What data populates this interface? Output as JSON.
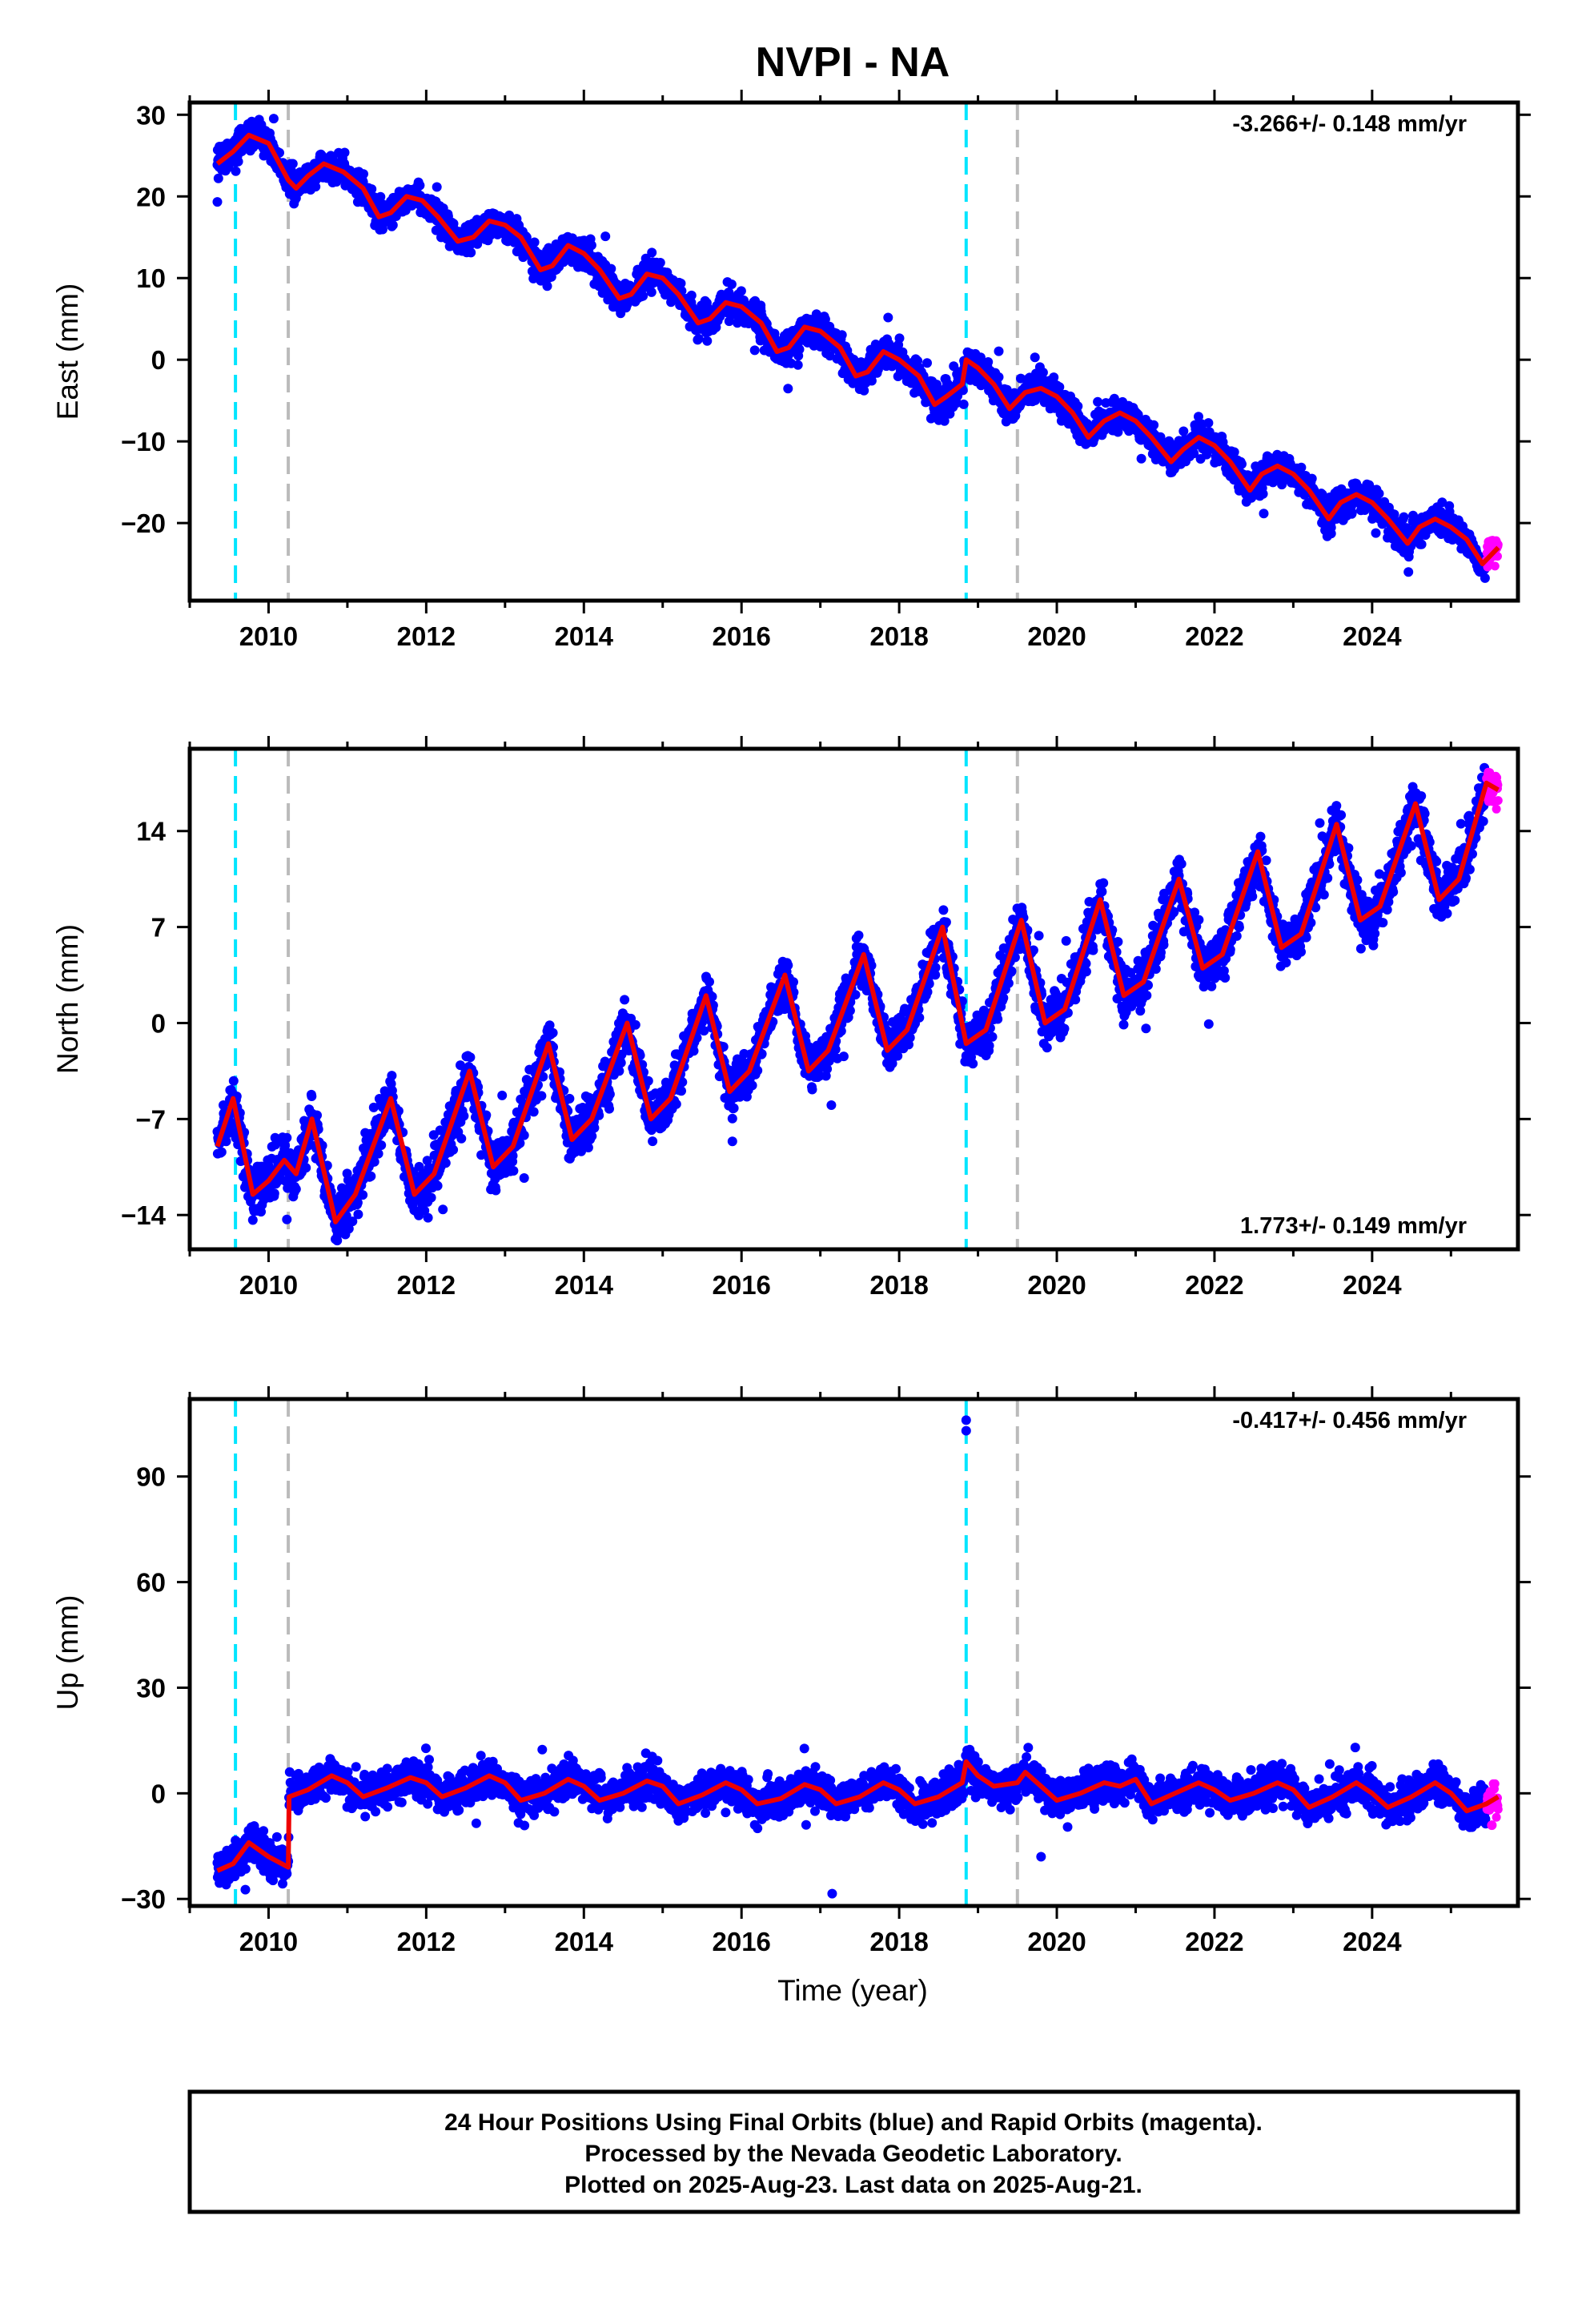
{
  "chart_data": {
    "type": "scatter",
    "title": "NVPI - NA",
    "xlabel": "Time (year)",
    "xlim": [
      2009.0,
      2025.85
    ],
    "x_ticks": [
      "2010",
      "2012",
      "2014",
      "2016",
      "2018",
      "2020",
      "2022",
      "2024"
    ],
    "x_tick_values": [
      2010,
      2012,
      2014,
      2016,
      2018,
      2020,
      2022,
      2024
    ],
    "event_lines": [
      {
        "x": 2009.58,
        "color": "#00e5ff",
        "style": "dashed"
      },
      {
        "x": 2010.25,
        "color": "#bbbbbb",
        "style": "dashed"
      },
      {
        "x": 2018.85,
        "color": "#00e5ff",
        "style": "dashed"
      },
      {
        "x": 2019.5,
        "color": "#bbbbbb",
        "style": "dashed"
      }
    ],
    "colors": {
      "final": "#0000ff",
      "rapid": "#ff00ff",
      "model": "#ee0000"
    },
    "panels": [
      {
        "name": "east",
        "ylabel": "East (mm)",
        "ylim": [
          -29.5,
          31.5
        ],
        "y_ticks": [
          "30",
          "20",
          "10",
          "0",
          "−10",
          "−20"
        ],
        "y_tick_values": [
          30,
          20,
          10,
          0,
          -10,
          -20
        ],
        "rate": "-3.266+/- 0.148 mm/yr",
        "rate_position": "top-right",
        "series_start": 2009.35,
        "series_end": 2025.6,
        "rapid_start": 2025.45,
        "model": [
          [
            2009.35,
            24
          ],
          [
            2009.55,
            25.5
          ],
          [
            2009.75,
            27.5
          ],
          [
            2010.0,
            26.5
          ],
          [
            2010.25,
            22
          ],
          [
            2010.35,
            21
          ],
          [
            2010.5,
            22.5
          ],
          [
            2010.7,
            24
          ],
          [
            2010.95,
            23
          ],
          [
            2011.2,
            21
          ],
          [
            2011.4,
            17.5
          ],
          [
            2011.55,
            18
          ],
          [
            2011.75,
            20
          ],
          [
            2011.95,
            19.5
          ],
          [
            2012.15,
            17.5
          ],
          [
            2012.4,
            14.5
          ],
          [
            2012.6,
            15
          ],
          [
            2012.8,
            17
          ],
          [
            2013.0,
            16.5
          ],
          [
            2013.2,
            15
          ],
          [
            2013.45,
            11
          ],
          [
            2013.6,
            11.5
          ],
          [
            2013.8,
            14
          ],
          [
            2014.0,
            13
          ],
          [
            2014.2,
            11
          ],
          [
            2014.45,
            7.5
          ],
          [
            2014.6,
            8
          ],
          [
            2014.8,
            10.5
          ],
          [
            2015.0,
            10
          ],
          [
            2015.2,
            8
          ],
          [
            2015.45,
            4.5
          ],
          [
            2015.6,
            5
          ],
          [
            2015.8,
            7
          ],
          [
            2016.0,
            6.5
          ],
          [
            2016.25,
            4.5
          ],
          [
            2016.45,
            1
          ],
          [
            2016.6,
            1.5
          ],
          [
            2016.8,
            4
          ],
          [
            2017.0,
            3.5
          ],
          [
            2017.25,
            1.5
          ],
          [
            2017.45,
            -2
          ],
          [
            2017.6,
            -1.5
          ],
          [
            2017.8,
            1
          ],
          [
            2018.0,
            0
          ],
          [
            2018.25,
            -2
          ],
          [
            2018.45,
            -5.5
          ],
          [
            2018.6,
            -4.5
          ],
          [
            2018.8,
            -3
          ],
          [
            2018.85,
            0
          ],
          [
            2019.0,
            -1
          ],
          [
            2019.2,
            -3
          ],
          [
            2019.4,
            -6
          ],
          [
            2019.6,
            -4
          ],
          [
            2019.8,
            -3.5
          ],
          [
            2020.0,
            -4.5
          ],
          [
            2020.2,
            -6.5
          ],
          [
            2020.4,
            -9.5
          ],
          [
            2020.6,
            -7.5
          ],
          [
            2020.8,
            -6.5
          ],
          [
            2021.0,
            -7.5
          ],
          [
            2021.2,
            -9.5
          ],
          [
            2021.45,
            -12.5
          ],
          [
            2021.6,
            -11
          ],
          [
            2021.8,
            -9.5
          ],
          [
            2022.0,
            -10.5
          ],
          [
            2022.2,
            -12.5
          ],
          [
            2022.45,
            -16
          ],
          [
            2022.6,
            -14
          ],
          [
            2022.8,
            -13
          ],
          [
            2023.0,
            -14
          ],
          [
            2023.2,
            -16
          ],
          [
            2023.45,
            -19.5
          ],
          [
            2023.6,
            -17.5
          ],
          [
            2023.8,
            -16.5
          ],
          [
            2024.0,
            -17.5
          ],
          [
            2024.2,
            -19.5
          ],
          [
            2024.45,
            -22.5
          ],
          [
            2024.6,
            -20.5
          ],
          [
            2024.8,
            -19.5
          ],
          [
            2025.0,
            -20.5
          ],
          [
            2025.2,
            -22
          ],
          [
            2025.4,
            -25
          ],
          [
            2025.6,
            -23
          ]
        ]
      },
      {
        "name": "north",
        "ylabel": "North (mm)",
        "ylim": [
          -16.5,
          20.0
        ],
        "y_ticks": [
          "14",
          "7",
          "0",
          "−7",
          "−14"
        ],
        "y_tick_values": [
          14,
          7,
          0,
          -7,
          -14
        ],
        "rate": "1.773+/- 0.149 mm/yr",
        "rate_position": "bottom-right",
        "series_start": 2009.35,
        "series_end": 2025.6,
        "rapid_start": 2025.45,
        "model": [
          [
            2009.35,
            -9
          ],
          [
            2009.55,
            -5.5
          ],
          [
            2009.8,
            -12.5
          ],
          [
            2010.0,
            -11.5
          ],
          [
            2010.2,
            -10
          ],
          [
            2010.35,
            -11
          ],
          [
            2010.55,
            -7
          ],
          [
            2010.85,
            -14.5
          ],
          [
            2011.1,
            -12.5
          ],
          [
            2011.55,
            -5.5
          ],
          [
            2011.85,
            -12.5
          ],
          [
            2012.1,
            -11
          ],
          [
            2012.55,
            -3.5
          ],
          [
            2012.85,
            -10.5
          ],
          [
            2013.1,
            -9
          ],
          [
            2013.55,
            -1.5
          ],
          [
            2013.85,
            -8.5
          ],
          [
            2014.1,
            -7
          ],
          [
            2014.55,
            0
          ],
          [
            2014.85,
            -7
          ],
          [
            2015.1,
            -5.5
          ],
          [
            2015.55,
            2
          ],
          [
            2015.85,
            -5
          ],
          [
            2016.1,
            -3.5
          ],
          [
            2016.55,
            3.5
          ],
          [
            2016.85,
            -3.5
          ],
          [
            2017.1,
            -2
          ],
          [
            2017.55,
            5
          ],
          [
            2017.85,
            -2
          ],
          [
            2018.1,
            -0.5
          ],
          [
            2018.55,
            7
          ],
          [
            2018.85,
            -1.5
          ],
          [
            2019.1,
            -0.5
          ],
          [
            2019.55,
            7.5
          ],
          [
            2019.85,
            0
          ],
          [
            2020.1,
            1
          ],
          [
            2020.55,
            9
          ],
          [
            2020.85,
            2
          ],
          [
            2021.1,
            3
          ],
          [
            2021.55,
            10.5
          ],
          [
            2021.85,
            4
          ],
          [
            2022.1,
            5
          ],
          [
            2022.55,
            12.5
          ],
          [
            2022.85,
            5.5
          ],
          [
            2023.1,
            6.5
          ],
          [
            2023.55,
            14.5
          ],
          [
            2023.85,
            7.5
          ],
          [
            2024.1,
            8.5
          ],
          [
            2024.55,
            16
          ],
          [
            2024.85,
            9
          ],
          [
            2025.1,
            10.5
          ],
          [
            2025.45,
            17.5
          ],
          [
            2025.6,
            17
          ]
        ]
      },
      {
        "name": "up",
        "ylabel": "Up (mm)",
        "ylim": [
          -32,
          112
        ],
        "y_ticks": [
          "90",
          "60",
          "30",
          "0",
          "−30"
        ],
        "y_tick_values": [
          90,
          60,
          30,
          0,
          -30
        ],
        "rate": "-0.417+/- 0.456 mm/yr",
        "rate_position": "top-right",
        "series_start": 2009.35,
        "series_end": 2025.6,
        "rapid_start": 2025.45,
        "model": [
          [
            2009.35,
            -22
          ],
          [
            2009.55,
            -20
          ],
          [
            2009.75,
            -14
          ],
          [
            2010.0,
            -18
          ],
          [
            2010.25,
            -21
          ],
          [
            2010.26,
            -1
          ],
          [
            2010.5,
            1
          ],
          [
            2010.8,
            5
          ],
          [
            2011.0,
            3
          ],
          [
            2011.2,
            -1
          ],
          [
            2011.5,
            1.5
          ],
          [
            2011.8,
            4.5
          ],
          [
            2012.0,
            3
          ],
          [
            2012.2,
            -1
          ],
          [
            2012.5,
            1.5
          ],
          [
            2012.8,
            5
          ],
          [
            2013.0,
            3
          ],
          [
            2013.2,
            -2
          ],
          [
            2013.5,
            0
          ],
          [
            2013.8,
            4
          ],
          [
            2014.0,
            2
          ],
          [
            2014.2,
            -2
          ],
          [
            2014.5,
            0
          ],
          [
            2014.8,
            3.5
          ],
          [
            2015.0,
            2
          ],
          [
            2015.2,
            -3
          ],
          [
            2015.5,
            -0.5
          ],
          [
            2015.8,
            3
          ],
          [
            2016.0,
            1
          ],
          [
            2016.2,
            -3
          ],
          [
            2016.5,
            -1.5
          ],
          [
            2016.8,
            2.5
          ],
          [
            2017.0,
            1
          ],
          [
            2017.2,
            -3
          ],
          [
            2017.5,
            -1
          ],
          [
            2017.8,
            3
          ],
          [
            2018.0,
            1
          ],
          [
            2018.2,
            -3
          ],
          [
            2018.5,
            -1
          ],
          [
            2018.8,
            3
          ],
          [
            2018.85,
            9
          ],
          [
            2019.0,
            5
          ],
          [
            2019.2,
            2
          ],
          [
            2019.5,
            3
          ],
          [
            2019.6,
            6
          ],
          [
            2019.8,
            2
          ],
          [
            2020.0,
            -2
          ],
          [
            2020.3,
            0
          ],
          [
            2020.6,
            3
          ],
          [
            2020.8,
            2
          ],
          [
            2021.0,
            4
          ],
          [
            2021.2,
            -3
          ],
          [
            2021.5,
            0
          ],
          [
            2021.8,
            3
          ],
          [
            2022.0,
            1
          ],
          [
            2022.2,
            -2
          ],
          [
            2022.5,
            0
          ],
          [
            2022.8,
            3
          ],
          [
            2023.0,
            1
          ],
          [
            2023.2,
            -4
          ],
          [
            2023.5,
            -1
          ],
          [
            2023.8,
            3
          ],
          [
            2024.0,
            0
          ],
          [
            2024.2,
            -4
          ],
          [
            2024.5,
            -1
          ],
          [
            2024.8,
            3
          ],
          [
            2025.0,
            0
          ],
          [
            2025.2,
            -5
          ],
          [
            2025.45,
            -3
          ],
          [
            2025.6,
            -1
          ]
        ],
        "outliers": [
          [
            2018.85,
            106
          ],
          [
            2018.85,
            103
          ],
          [
            2017.15,
            -28.5
          ],
          [
            2019.8,
            -18
          ]
        ]
      }
    ]
  },
  "footer": {
    "line1": "24 Hour Positions Using Final Orbits (blue) and Rapid Orbits (magenta).",
    "line2": "Processed by the Nevada Geodetic Laboratory.",
    "line3": "Plotted on 2025-Aug-23. Last data on 2025-Aug-21."
  }
}
